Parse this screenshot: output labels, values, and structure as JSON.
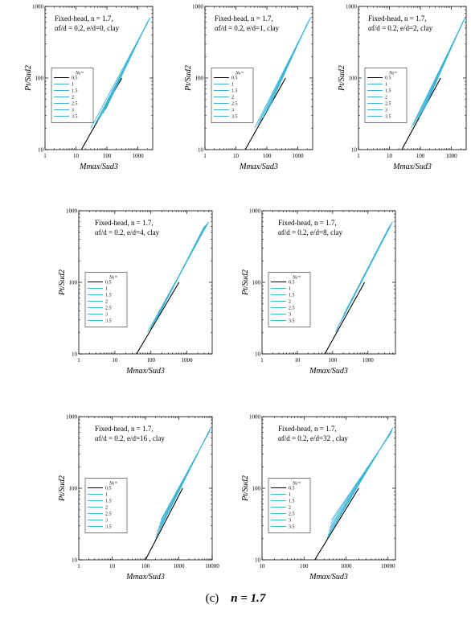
{
  "figure": {
    "caption_label": "(c)",
    "caption_value": "n = 1.7",
    "colors": {
      "axis": "#000000",
      "base_series": "#000000",
      "series": "#39b4d8"
    }
  },
  "chart_data": [
    {
      "type": "line",
      "title": "Fixed-head, n = 1.7, αf/d = 0.2, e/d=0, clay",
      "xlabel": "Mmax/Sud3",
      "ylabel": "Pt/Sud2",
      "x_scale": "log",
      "y_scale": "log",
      "xlim": [
        1,
        3000
      ],
      "ylim": [
        10,
        1000
      ],
      "xticks": [
        "1",
        "10",
        "100",
        "1000"
      ],
      "yticks": [
        "10",
        "100",
        "1000"
      ],
      "legend_title": "Ns",
      "legend_position": "center-left",
      "series": [
        {
          "name": "0.5",
          "x": [
            15,
            300
          ],
          "y": [
            10,
            100
          ]
        },
        {
          "name": "1",
          "x": [
            30,
            2500
          ],
          "y": [
            20,
            700
          ]
        },
        {
          "name": "1.5",
          "x": [
            40,
            2400
          ],
          "y": [
            22,
            680
          ]
        },
        {
          "name": "2",
          "x": [
            50,
            2300
          ],
          "y": [
            25,
            660
          ]
        },
        {
          "name": "2.5",
          "x": [
            60,
            2200
          ],
          "y": [
            28,
            640
          ]
        },
        {
          "name": "3",
          "x": [
            75,
            2100
          ],
          "y": [
            32,
            620
          ]
        },
        {
          "name": "3.5",
          "x": [
            90,
            2000
          ],
          "y": [
            36,
            600
          ]
        }
      ]
    },
    {
      "type": "line",
      "title": "Fixed-head, n = 1.7, αf/d = 0.2, e/d=1, clay",
      "xlabel": "Mmax/Sud3",
      "ylabel": "Pt/Sud2",
      "x_scale": "log",
      "y_scale": "log",
      "xlim": [
        1,
        3000
      ],
      "ylim": [
        10,
        1000
      ],
      "xticks": [
        "1",
        "10",
        "100",
        "1000"
      ],
      "yticks": [
        "10",
        "100",
        "1000"
      ],
      "legend_title": "Ns",
      "legend_position": "center-left",
      "series": [
        {
          "name": "0.5",
          "x": [
            20,
            400
          ],
          "y": [
            10,
            100
          ]
        },
        {
          "name": "1",
          "x": [
            40,
            2600
          ],
          "y": [
            20,
            700
          ]
        },
        {
          "name": "1.5",
          "x": [
            50,
            2500
          ],
          "y": [
            22,
            680
          ]
        },
        {
          "name": "2",
          "x": [
            60,
            2400
          ],
          "y": [
            25,
            660
          ]
        },
        {
          "name": "2.5",
          "x": [
            75,
            2300
          ],
          "y": [
            28,
            640
          ]
        },
        {
          "name": "3",
          "x": [
            90,
            2200
          ],
          "y": [
            32,
            620
          ]
        },
        {
          "name": "3.5",
          "x": [
            110,
            2100
          ],
          "y": [
            36,
            600
          ]
        }
      ]
    },
    {
      "type": "line",
      "title": "Fixed-head, n = 1.7, αf/d = 0.2, e/d=2, clay",
      "xlabel": "Mmax/Sud3",
      "ylabel": "Pt/Sud2",
      "x_scale": "log",
      "y_scale": "log",
      "xlim": [
        1,
        3000
      ],
      "ylim": [
        10,
        1000
      ],
      "xticks": [
        "1",
        "10",
        "100",
        "1000"
      ],
      "yticks": [
        "10",
        "100",
        "1000"
      ],
      "legend_title": "Ns",
      "legend_position": "center-left",
      "series": [
        {
          "name": "0.5",
          "x": [
            25,
            450
          ],
          "y": [
            10,
            100
          ]
        },
        {
          "name": "1",
          "x": [
            50,
            2800
          ],
          "y": [
            20,
            700
          ]
        },
        {
          "name": "1.5",
          "x": [
            60,
            2700
          ],
          "y": [
            22,
            680
          ]
        },
        {
          "name": "2",
          "x": [
            75,
            2600
          ],
          "y": [
            25,
            660
          ]
        },
        {
          "name": "2.5",
          "x": [
            90,
            2500
          ],
          "y": [
            28,
            640
          ]
        },
        {
          "name": "3",
          "x": [
            110,
            2400
          ],
          "y": [
            32,
            620
          ]
        },
        {
          "name": "3.5",
          "x": [
            130,
            2300
          ],
          "y": [
            36,
            600
          ]
        }
      ]
    },
    {
      "type": "line",
      "title": "Fixed-head, n = 1.7, αf/d = 0.2, e/d=4, clay",
      "xlabel": "Mmax/Sud3",
      "ylabel": "Pt/Sud2",
      "x_scale": "log",
      "y_scale": "log",
      "xlim": [
        1,
        5000
      ],
      "ylim": [
        10,
        1000
      ],
      "xticks": [
        "1",
        "10",
        "100",
        "1000"
      ],
      "yticks": [
        "10",
        "100",
        "1000"
      ],
      "legend_title": "Ns",
      "legend_position": "center-left",
      "series": [
        {
          "name": "0.5",
          "x": [
            40,
            600
          ],
          "y": [
            10,
            100
          ]
        },
        {
          "name": "1",
          "x": [
            80,
            4000
          ],
          "y": [
            20,
            700
          ]
        },
        {
          "name": "1.5",
          "x": [
            95,
            3800
          ],
          "y": [
            22,
            680
          ]
        },
        {
          "name": "2",
          "x": [
            110,
            3600
          ],
          "y": [
            25,
            660
          ]
        },
        {
          "name": "2.5",
          "x": [
            130,
            3400
          ],
          "y": [
            28,
            640
          ]
        },
        {
          "name": "3",
          "x": [
            150,
            3200
          ],
          "y": [
            32,
            620
          ]
        },
        {
          "name": "3.5",
          "x": [
            170,
            3000
          ],
          "y": [
            36,
            600
          ]
        }
      ]
    },
    {
      "type": "line",
      "title": "Fixed-head, n = 1.7, αf/d = 0.2, e/d=8, clay",
      "xlabel": "Mmax/Sud3",
      "ylabel": "Pt/Sud2",
      "x_scale": "log",
      "y_scale": "log",
      "xlim": [
        1,
        6000
      ],
      "ylim": [
        10,
        1000
      ],
      "xticks": [
        "1",
        "10",
        "100",
        "1000"
      ],
      "yticks": [
        "10",
        "100",
        "1000"
      ],
      "legend_title": "Ns",
      "legend_position": "center-left",
      "series": [
        {
          "name": "0.5",
          "x": [
            60,
            800
          ],
          "y": [
            10,
            100
          ]
        },
        {
          "name": "1",
          "x": [
            120,
            5000
          ],
          "y": [
            20,
            700
          ]
        },
        {
          "name": "1.5",
          "x": [
            130,
            4800
          ],
          "y": [
            22,
            680
          ]
        },
        {
          "name": "2",
          "x": [
            150,
            4600
          ],
          "y": [
            25,
            660
          ]
        },
        {
          "name": "2.5",
          "x": [
            170,
            4400
          ],
          "y": [
            28,
            640
          ]
        },
        {
          "name": "3",
          "x": [
            190,
            4200
          ],
          "y": [
            32,
            620
          ]
        },
        {
          "name": "3.5",
          "x": [
            210,
            4000
          ],
          "y": [
            36,
            600
          ]
        }
      ]
    },
    {
      "type": "line",
      "title": "Fixed-head, n = 1.7, αf/d = 0.2, e/d=16 , clay",
      "xlabel": "Mmax/Sud3",
      "ylabel": "Pt/Sud2",
      "x_scale": "log",
      "y_scale": "log",
      "xlim": [
        1,
        10000
      ],
      "ylim": [
        10,
        1000
      ],
      "xticks": [
        "1",
        "10",
        "100",
        "1000",
        "10000"
      ],
      "yticks": [
        "10",
        "100",
        "1000"
      ],
      "legend_title": "Ns",
      "legend_position": "center-left",
      "series": [
        {
          "name": "0.5",
          "x": [
            100,
            1300
          ],
          "y": [
            10,
            100
          ]
        },
        {
          "name": "1",
          "x": [
            200,
            9000
          ],
          "y": [
            20,
            700
          ]
        },
        {
          "name": "1.5",
          "x": [
            215,
            8800
          ],
          "y": [
            22,
            680
          ]
        },
        {
          "name": "2",
          "x": [
            230,
            8600
          ],
          "y": [
            25,
            660
          ]
        },
        {
          "name": "2.5",
          "x": [
            250,
            8400
          ],
          "y": [
            28,
            640
          ]
        },
        {
          "name": "3",
          "x": [
            270,
            8200
          ],
          "y": [
            32,
            620
          ]
        },
        {
          "name": "3.5",
          "x": [
            290,
            8000
          ],
          "y": [
            36,
            600
          ]
        }
      ]
    },
    {
      "type": "line",
      "title": "Fixed-head, n = 1.7, αf/d = 0.2, e/d=32 , clay",
      "xlabel": "Mmax/Sud3",
      "ylabel": "Pt/Sud2",
      "x_scale": "log",
      "y_scale": "log",
      "xlim": [
        10,
        15000
      ],
      "ylim": [
        10,
        1000
      ],
      "xticks": [
        "10",
        "100",
        "1000",
        "10000"
      ],
      "yticks": [
        "10",
        "100",
        "1000"
      ],
      "legend_title": "Ns",
      "legend_position": "center-left",
      "series": [
        {
          "name": "0.5",
          "x": [
            180,
            2000
          ],
          "y": [
            10,
            100
          ]
        },
        {
          "name": "1",
          "x": [
            350,
            13000
          ],
          "y": [
            20,
            700
          ]
        },
        {
          "name": "1.5",
          "x": [
            370,
            12800
          ],
          "y": [
            22,
            680
          ]
        },
        {
          "name": "2",
          "x": [
            390,
            12600
          ],
          "y": [
            25,
            660
          ]
        },
        {
          "name": "2.5",
          "x": [
            410,
            12400
          ],
          "y": [
            28,
            640
          ]
        },
        {
          "name": "3",
          "x": [
            430,
            12200
          ],
          "y": [
            32,
            620
          ]
        },
        {
          "name": "3.5",
          "x": [
            450,
            12000
          ],
          "y": [
            36,
            600
          ]
        }
      ]
    }
  ]
}
